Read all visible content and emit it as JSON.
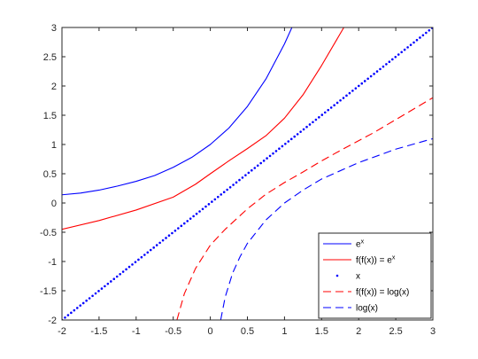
{
  "chart_data": {
    "type": "line",
    "title": "",
    "xlabel": "",
    "ylabel": "",
    "xlim": [
      -2,
      3
    ],
    "ylim": [
      -2,
      3
    ],
    "grid": false,
    "legend_position": "bottom-right",
    "x_ticks": [
      "-2",
      "-1.5",
      "-1",
      "-0.5",
      "0",
      "0.5",
      "1",
      "1.5",
      "2",
      "2.5",
      "3"
    ],
    "y_ticks": [
      "-2",
      "-1.5",
      "-1",
      "-0.5",
      "0",
      "0.5",
      "1",
      "1.5",
      "2",
      "2.5",
      "3"
    ],
    "series": [
      {
        "name": "e^x",
        "legend_base": "e",
        "legend_sup": "x",
        "color": "#0000ff",
        "style": "solid",
        "x": [
          -2,
          -1.75,
          -1.5,
          -1.25,
          -1,
          -0.75,
          -0.5,
          -0.25,
          0,
          0.25,
          0.5,
          0.75,
          1,
          1.05,
          1.1
        ],
        "y": [
          0.14,
          0.17,
          0.22,
          0.29,
          0.37,
          0.47,
          0.61,
          0.78,
          1.0,
          1.28,
          1.65,
          2.12,
          2.72,
          2.86,
          3.0
        ]
      },
      {
        "name": "f(f(x)) = e^x",
        "legend_base": "f(f(x)) = e",
        "legend_sup": "x",
        "color": "#ff0000",
        "style": "solid",
        "x": [
          -2,
          -1.5,
          -1,
          -0.5,
          -0.2,
          0,
          0.25,
          0.5,
          0.75,
          1,
          1.25,
          1.5,
          1.8
        ],
        "y": [
          -0.45,
          -0.3,
          -0.12,
          0.1,
          0.32,
          0.5,
          0.72,
          0.93,
          1.15,
          1.45,
          1.85,
          2.35,
          3.0
        ]
      },
      {
        "name": "x",
        "legend_base": "x",
        "legend_sup": "",
        "color": "#0000ff",
        "style": "dotted",
        "x": [
          -2,
          3
        ],
        "y": [
          -2,
          3
        ]
      },
      {
        "name": "f(f(x)) = log(x)",
        "legend_base": "f(f(x)) = log(x)",
        "legend_sup": "",
        "color": "#ff0000",
        "style": "dashed",
        "x": [
          -0.45,
          -0.35,
          -0.2,
          0,
          0.2,
          0.5,
          0.75,
          1,
          1.25,
          1.5,
          1.8,
          2.2,
          2.6,
          3
        ],
        "y": [
          -2,
          -1.55,
          -1.12,
          -0.72,
          -0.45,
          -0.1,
          0.15,
          0.35,
          0.53,
          0.72,
          0.93,
          1.2,
          1.5,
          1.8
        ]
      },
      {
        "name": "log(x)",
        "legend_base": "log(x)",
        "legend_sup": "",
        "color": "#0000ff",
        "style": "dashed",
        "x": [
          0.14,
          0.2,
          0.3,
          0.4,
          0.5,
          0.75,
          1,
          1.25,
          1.5,
          2,
          2.5,
          3
        ],
        "y": [
          -2,
          -1.61,
          -1.2,
          -0.92,
          -0.69,
          -0.29,
          0,
          0.22,
          0.41,
          0.69,
          0.92,
          1.1
        ]
      }
    ]
  }
}
